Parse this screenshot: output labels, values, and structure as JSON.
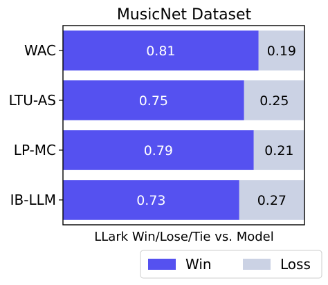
{
  "chart_data": {
    "type": "bar",
    "orientation": "horizontal",
    "stacked": true,
    "title": "MusicNet Dataset",
    "xlabel": "LLark Win/Lose/Tie vs. Model",
    "ylabel": "",
    "xlim": [
      0,
      1
    ],
    "categories": [
      "WAC",
      "LTU-AS",
      "LP-MC",
      "IB-LLM"
    ],
    "series": [
      {
        "name": "Win",
        "values": [
          0.81,
          0.75,
          0.79,
          0.73
        ],
        "labels": [
          "0.81",
          "0.75",
          "0.79",
          "0.73"
        ],
        "color": "#5551f0",
        "label_color": "#ffffff"
      },
      {
        "name": "Loss",
        "values": [
          0.19,
          0.25,
          0.21,
          0.27
        ],
        "labels": [
          "0.19",
          "0.25",
          "0.21",
          "0.27"
        ],
        "color": "#cbd2e4",
        "label_color": "#000000"
      }
    ],
    "legend": {
      "position": "bottom-right"
    },
    "grid": false
  }
}
